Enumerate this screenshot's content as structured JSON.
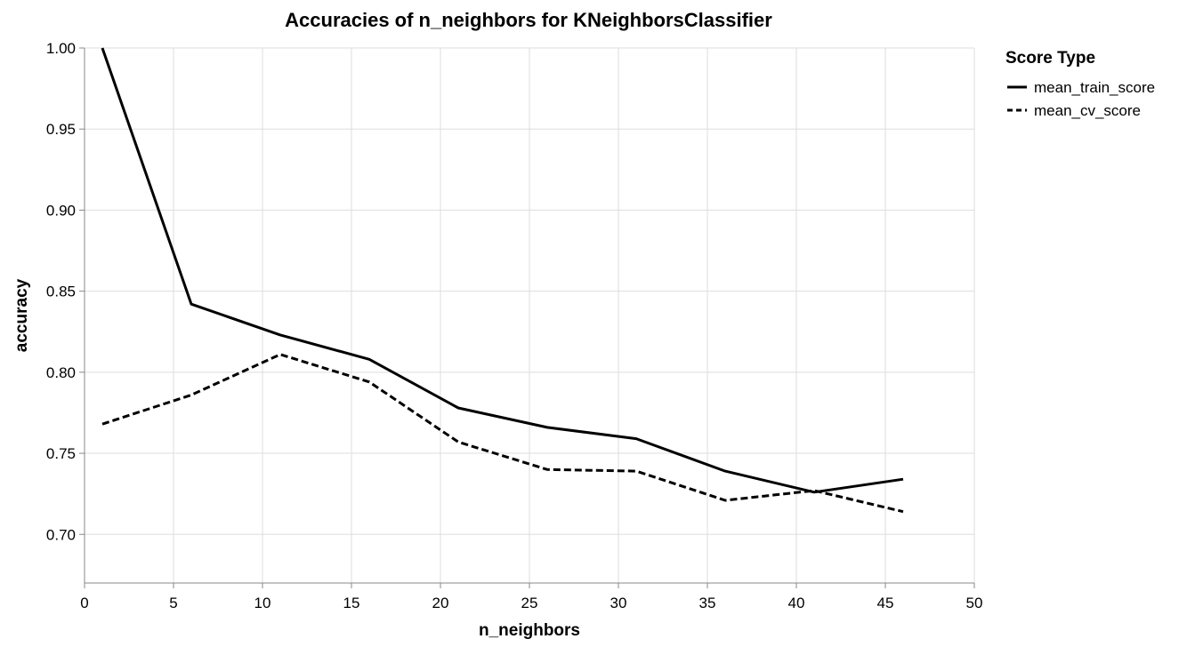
{
  "chart_data": {
    "type": "line",
    "title": "Accuracies of n_neighbors for KNeighborsClassifier",
    "xlabel": "n_neighbors",
    "ylabel": "accuracy",
    "xlim": [
      0,
      50
    ],
    "ylim": [
      0.67,
      1.0
    ],
    "x_ticks": [
      0,
      5,
      10,
      15,
      20,
      25,
      30,
      35,
      40,
      45,
      50
    ],
    "x_tick_labels": [
      "0",
      "5",
      "10",
      "15",
      "20",
      "25",
      "30",
      "35",
      "40",
      "45",
      "50"
    ],
    "y_ticks": [
      0.7,
      0.75,
      0.8,
      0.85,
      0.9,
      0.95,
      1.0
    ],
    "y_tick_labels": [
      "0.70",
      "0.75",
      "0.80",
      "0.85",
      "0.90",
      "0.95",
      "1.00"
    ],
    "grid": true,
    "legend": {
      "title": "Score Type",
      "position": "right"
    },
    "x": [
      1,
      6,
      11,
      16,
      21,
      26,
      31,
      36,
      41,
      46
    ],
    "series": [
      {
        "name": "mean_train_score",
        "dash": "solid",
        "color": "#000000",
        "values": [
          1.0,
          0.842,
          0.823,
          0.808,
          0.778,
          0.766,
          0.759,
          0.739,
          0.726,
          0.734
        ]
      },
      {
        "name": "mean_cv_score",
        "dash": "dashed",
        "color": "#000000",
        "values": [
          0.768,
          0.786,
          0.811,
          0.794,
          0.757,
          0.74,
          0.739,
          0.721,
          0.727,
          0.714
        ]
      }
    ]
  }
}
